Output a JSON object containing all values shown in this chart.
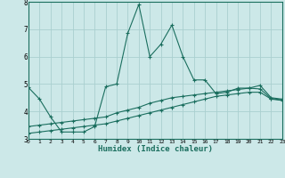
{
  "xlabel": "Humidex (Indice chaleur)",
  "bg_color": "#cce8e8",
  "line_color": "#1a6e5e",
  "grid_color": "#aacfcf",
  "x_min": 0,
  "x_max": 23,
  "y_min": 3,
  "y_max": 8,
  "x_ticks": [
    0,
    1,
    2,
    3,
    4,
    5,
    6,
    7,
    8,
    9,
    10,
    11,
    12,
    13,
    14,
    15,
    16,
    17,
    18,
    19,
    20,
    21,
    22,
    23
  ],
  "y_ticks": [
    3,
    4,
    5,
    6,
    7,
    8
  ],
  "line1_x": [
    0,
    1,
    2,
    3,
    4,
    5,
    6,
    7,
    8,
    9,
    10,
    11,
    12,
    13,
    14,
    15,
    16,
    17,
    18,
    19,
    20,
    21,
    22,
    23
  ],
  "line1_y": [
    4.87,
    4.45,
    3.8,
    3.25,
    3.25,
    3.25,
    3.45,
    4.9,
    5.0,
    6.85,
    7.9,
    6.0,
    6.45,
    7.15,
    6.0,
    5.15,
    5.15,
    4.65,
    4.7,
    4.85,
    4.85,
    4.95,
    4.5,
    4.45
  ],
  "line2_x": [
    0,
    1,
    2,
    3,
    4,
    5,
    6,
    7,
    8,
    9,
    10,
    11,
    12,
    13,
    14,
    15,
    16,
    17,
    18,
    19,
    20,
    21,
    22,
    23
  ],
  "line2_y": [
    3.2,
    3.25,
    3.3,
    3.35,
    3.4,
    3.45,
    3.5,
    3.55,
    3.65,
    3.75,
    3.85,
    3.95,
    4.05,
    4.15,
    4.25,
    4.35,
    4.45,
    4.55,
    4.6,
    4.65,
    4.7,
    4.7,
    4.45,
    4.4
  ],
  "line3_x": [
    0,
    1,
    2,
    3,
    4,
    5,
    6,
    7,
    8,
    9,
    10,
    11,
    12,
    13,
    14,
    15,
    16,
    17,
    18,
    19,
    20,
    21,
    22,
    23
  ],
  "line3_y": [
    3.45,
    3.5,
    3.55,
    3.6,
    3.65,
    3.7,
    3.75,
    3.8,
    3.95,
    4.05,
    4.15,
    4.3,
    4.4,
    4.5,
    4.55,
    4.6,
    4.65,
    4.7,
    4.75,
    4.8,
    4.85,
    4.82,
    4.47,
    4.42
  ]
}
